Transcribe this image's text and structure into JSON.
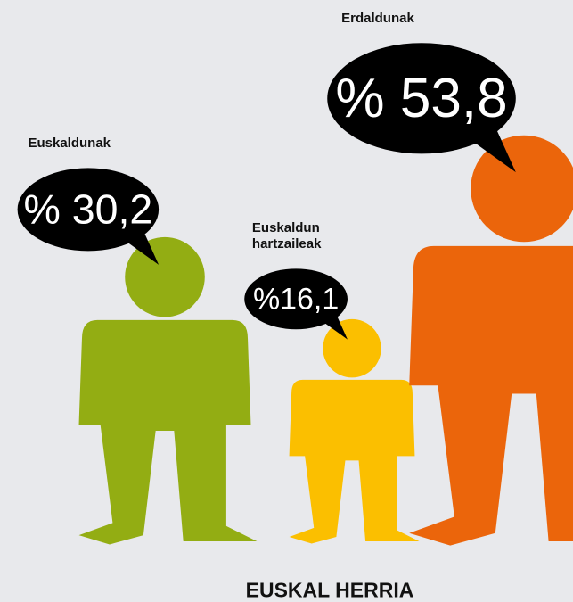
{
  "chart_data": {
    "type": "pictograph",
    "title": "EUSKAL HERRIA",
    "categories": [
      "Euskaldunak",
      "Euskaldun hartzaileak",
      "Erdaldunak"
    ],
    "values": [
      30.2,
      16.1,
      53.8
    ],
    "value_labels": [
      "% 30,2",
      "%16,1",
      "% 53,8"
    ],
    "colors": [
      "#93ad13",
      "#fbbf00",
      "#eb650b"
    ]
  }
}
